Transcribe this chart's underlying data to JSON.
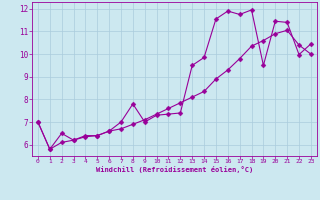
{
  "xlabel": "Windchill (Refroidissement éolien,°C)",
  "background_color": "#cce8f0",
  "grid_color": "#aaccdd",
  "line_color": "#990099",
  "markersize": 2.5,
  "xlim": [
    -0.5,
    23.5
  ],
  "ylim": [
    5.5,
    12.3
  ],
  "yticks": [
    6,
    7,
    8,
    9,
    10,
    11,
    12
  ],
  "xticks": [
    0,
    1,
    2,
    3,
    4,
    5,
    6,
    7,
    8,
    9,
    10,
    11,
    12,
    13,
    14,
    15,
    16,
    17,
    18,
    19,
    20,
    21,
    22,
    23
  ],
  "line1_x": [
    0,
    1,
    2,
    3,
    4,
    5,
    6,
    7,
    8,
    9,
    10,
    11,
    12,
    13,
    14,
    15,
    16,
    17,
    18,
    19,
    20,
    21,
    22,
    23
  ],
  "line1_y": [
    7.0,
    5.8,
    6.5,
    6.2,
    6.4,
    6.4,
    6.6,
    7.0,
    7.8,
    7.0,
    7.3,
    7.35,
    7.4,
    9.5,
    9.85,
    11.55,
    11.9,
    11.75,
    11.95,
    9.5,
    11.45,
    11.4,
    9.98,
    10.45
  ],
  "line2_x": [
    0,
    1,
    2,
    3,
    4,
    5,
    6,
    7,
    8,
    9,
    10,
    11,
    12,
    13,
    14,
    15,
    16,
    17,
    18,
    19,
    20,
    21,
    22,
    23
  ],
  "line2_y": [
    7.0,
    5.8,
    6.1,
    6.2,
    6.35,
    6.4,
    6.6,
    6.7,
    6.9,
    7.1,
    7.35,
    7.6,
    7.85,
    8.1,
    8.35,
    8.9,
    9.3,
    9.8,
    10.35,
    10.6,
    10.9,
    11.05,
    10.4,
    10.0
  ]
}
